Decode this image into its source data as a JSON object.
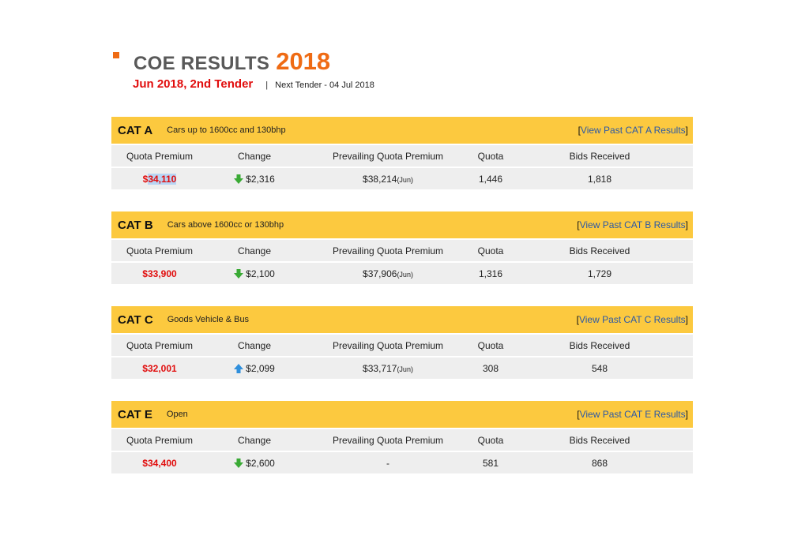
{
  "header": {
    "title": "COE RESULTS",
    "year": "2018",
    "tender": "Jun 2018, 2nd Tender",
    "separator": "|",
    "next_tender": "Next Tender - 04 Jul 2018"
  },
  "columns": [
    "Quota Premium",
    "Change",
    "Prevailing Quota Premium",
    "Quota",
    "Bids Received"
  ],
  "colors": {
    "accent": "#ef6b14",
    "band": "#fcc93f",
    "premium": "#e10d0d",
    "down": "#3aaa35",
    "up": "#2f8fdc",
    "link": "#2c59a6"
  },
  "categories": [
    {
      "code": "CAT A",
      "desc": "Cars up to 1600cc and 130bhp",
      "link": {
        "open": "[",
        "text": "View Past CAT A Results",
        "close": "]"
      },
      "premium_prefix": "$",
      "premium_main": "34,110",
      "change_icon": "arrow-down-icon",
      "change": "$2,316",
      "prevailing": "$38,214",
      "prevailing_month": "(Jun)",
      "quota": "1,446",
      "bids": "1,818"
    },
    {
      "code": "CAT B",
      "desc": "Cars above 1600cc or 130bhp",
      "link": {
        "open": "[",
        "text": "View Past CAT B Results",
        "close": "]"
      },
      "premium_prefix": "",
      "premium_main": "$33,900",
      "change_icon": "arrow-down-icon",
      "change": "$2,100",
      "prevailing": "$37,906",
      "prevailing_month": "(Jun)",
      "quota": "1,316",
      "bids": "1,729"
    },
    {
      "code": "CAT C",
      "desc": "Goods Vehicle & Bus",
      "link": {
        "open": "[",
        "text": "View Past CAT C Results",
        "close": "]"
      },
      "premium_prefix": "",
      "premium_main": "$32,001",
      "change_icon": "arrow-up-icon",
      "change": "$2,099",
      "prevailing": "$33,717",
      "prevailing_month": "(Jun)",
      "quota": "308",
      "bids": "548"
    },
    {
      "code": "CAT E",
      "desc": "Open",
      "link": {
        "open": "[",
        "text": "View Past CAT E Results",
        "close": "]"
      },
      "premium_prefix": "",
      "premium_main": "$34,400",
      "change_icon": "arrow-down-icon",
      "change": "$2,600",
      "prevailing": "-",
      "prevailing_month": "",
      "quota": "581",
      "bids": "868"
    }
  ]
}
